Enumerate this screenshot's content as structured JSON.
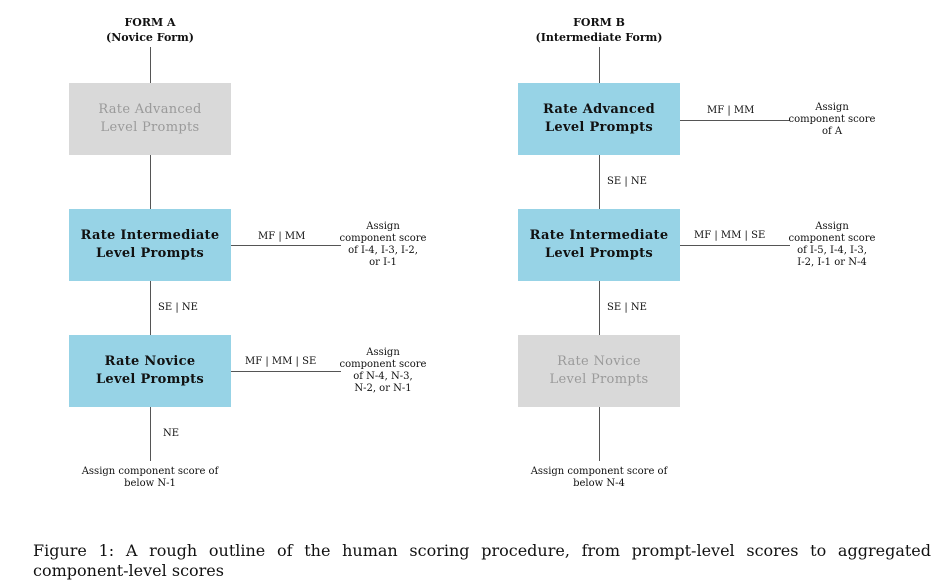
{
  "form_a": {
    "title": "FORM A",
    "subtitle": "(Novice Form)",
    "box_advanced": {
      "line1": "Rate Advanced",
      "line2": "Level Prompts"
    },
    "box_intermediate": {
      "line1": "Rate Intermediate",
      "line2": "Level Prompts"
    },
    "box_novice": {
      "line1": "Rate Novice",
      "line2": "Level Prompts"
    },
    "edge_intermediate_right": "MF | MM",
    "assign_intermediate": [
      "Assign",
      "component score",
      "of I-4, I-3, I-2,",
      "or I-1"
    ],
    "edge_intermediate_down": "SE | NE",
    "edge_novice_right": "MF | MM | SE",
    "assign_novice": [
      "Assign",
      "component score",
      "of N-4, N-3,",
      "N-2, or N-1"
    ],
    "edge_novice_down": "NE",
    "final_assign": [
      "Assign component score of",
      "below N-1"
    ]
  },
  "form_b": {
    "title": "FORM B",
    "subtitle": "(Intermediate Form)",
    "box_advanced": {
      "line1": "Rate Advanced",
      "line2": "Level Prompts"
    },
    "box_intermediate": {
      "line1": "Rate Intermediate",
      "line2": "Level Prompts"
    },
    "box_novice": {
      "line1": "Rate Novice",
      "line2": "Level Prompts"
    },
    "edge_advanced_right": "MF | MM",
    "assign_advanced": [
      "Assign",
      "component score",
      "of A"
    ],
    "edge_advanced_down": "SE | NE",
    "edge_intermediate_right": "MF | MM | SE",
    "assign_intermediate": [
      "Assign",
      "component score",
      "of I-5, I-4, I-3,",
      "I-2, I-1 or N-4"
    ],
    "edge_intermediate_down": "SE | NE",
    "final_assign": [
      "Assign component score of",
      "below N-4"
    ]
  },
  "caption": "Figure 1:  A rough outline of the human scoring procedure, from prompt-level scores to aggregated component-level scores",
  "colors": {
    "active_box": "#97d3e6",
    "inactive_box": "#d9d9d9",
    "inactive_text": "#9a9a9a"
  }
}
